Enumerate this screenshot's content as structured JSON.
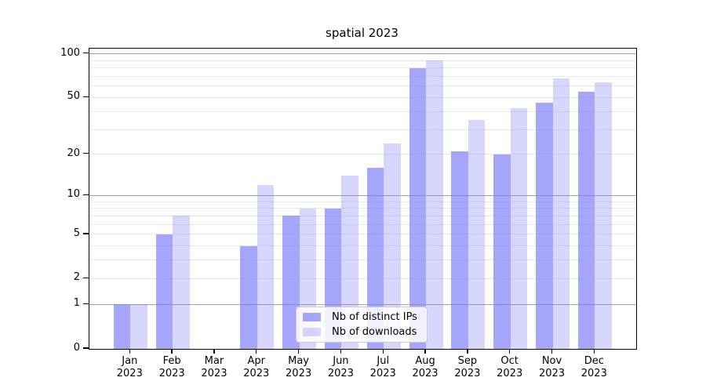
{
  "chart_data": {
    "type": "bar",
    "title": "spatial 2023",
    "categories": [
      "Jan 2023",
      "Feb 2023",
      "Mar 2023",
      "Apr 2023",
      "May 2023",
      "Jun 2023",
      "Jul 2023",
      "Aug 2023",
      "Sep 2023",
      "Oct 2023",
      "Nov 2023",
      "Dec 2023"
    ],
    "series": [
      {
        "name": "Nb of distinct IPs",
        "values": [
          1,
          5,
          0,
          4,
          7,
          8,
          16,
          80,
          21,
          20,
          46,
          55
        ],
        "base_color": "#7c7cfa",
        "alpha": 0.68
      },
      {
        "name": "Nb of downloads",
        "values": [
          1,
          7,
          0,
          12,
          8,
          14,
          24,
          90,
          35,
          42,
          68,
          64
        ],
        "base_color": "#7c7cfa",
        "alpha": 0.3
      }
    ],
    "y_axis": {
      "scale": "log1p",
      "ticks": [
        0,
        1,
        2,
        5,
        10,
        20,
        50,
        100
      ],
      "major_gridlines": [
        1,
        10,
        100
      ],
      "minor_gridlines": [
        2,
        3,
        4,
        5,
        6,
        7,
        8,
        9,
        20,
        30,
        40,
        50,
        60,
        70,
        80,
        90
      ],
      "ylim": [
        0,
        113
      ]
    },
    "legend_position": "lower center",
    "grid": true,
    "colors": {
      "grid_major": "#a0a0a0",
      "grid_minor": "#e8e8e8",
      "spine": "#000000",
      "legend_border": "#cccccc",
      "text": "#000000"
    }
  }
}
